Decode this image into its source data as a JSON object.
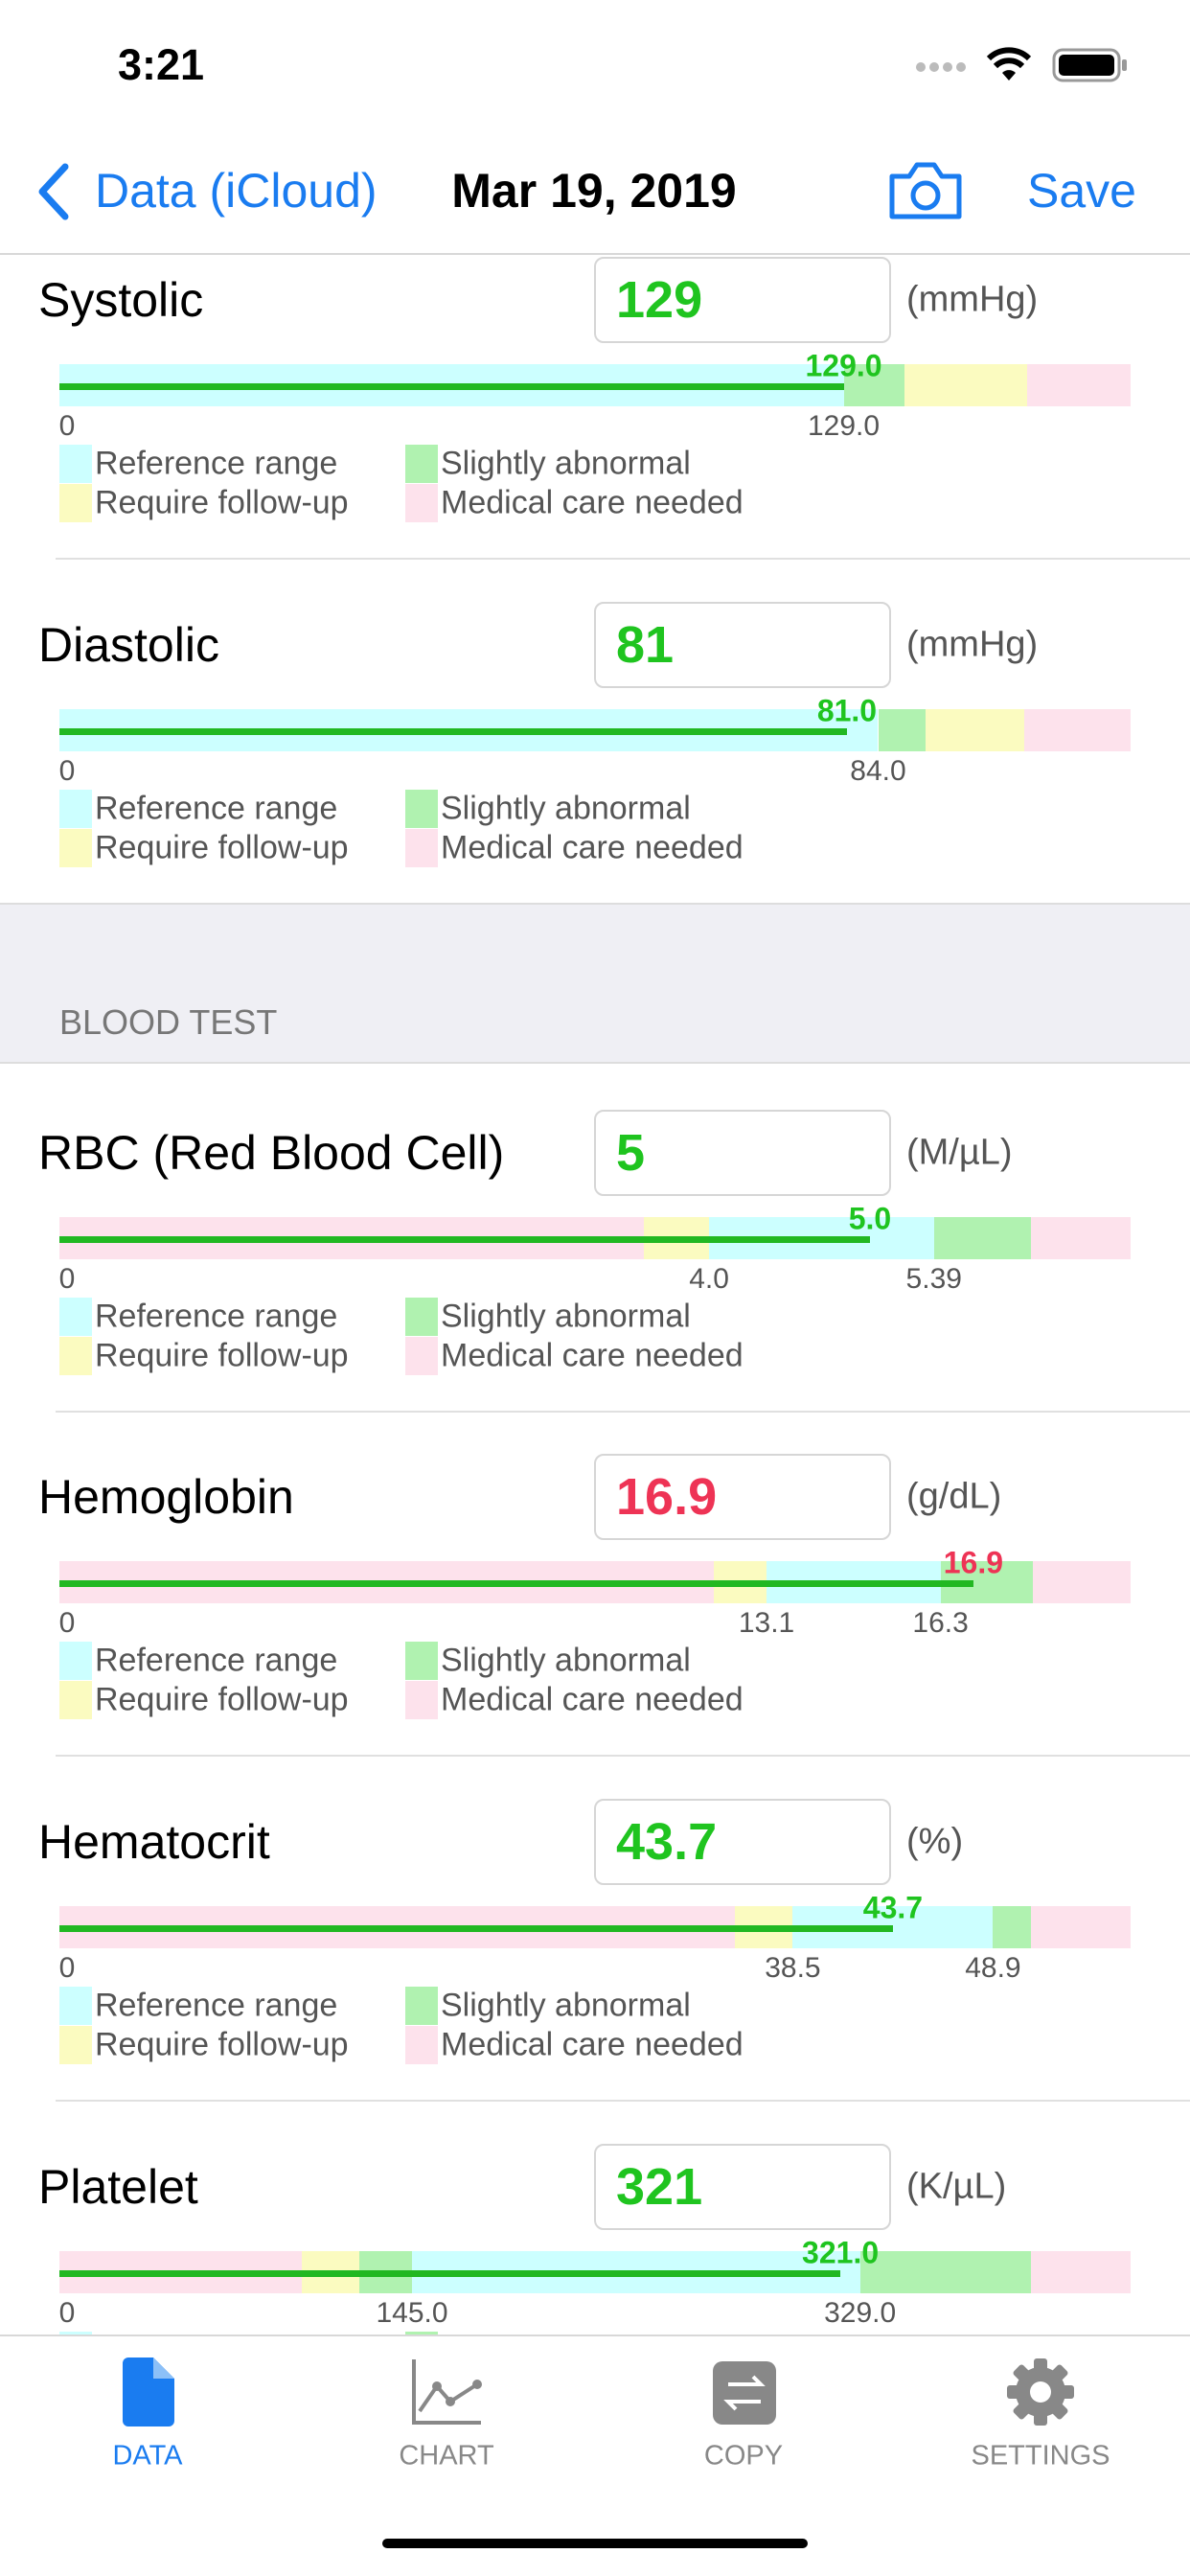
{
  "status": {
    "time": "3:21"
  },
  "nav": {
    "back": "Data (iCloud)",
    "title": "Mar 19, 2019",
    "save": "Save"
  },
  "legend": [
    "Reference range",
    "Slightly abnormal",
    "Require follow-up",
    "Medical care needed"
  ],
  "section_header": "BLOOD TEST",
  "rows": [
    {
      "label": "Systolic",
      "value": "129",
      "unit": "(mmHg)",
      "marker": "129.0",
      "ticks": [
        "0",
        "129.0"
      ],
      "color": "#1fc41f"
    },
    {
      "label": "Diastolic",
      "value": "81",
      "unit": "(mmHg)",
      "marker": "81.0",
      "ticks": [
        "0",
        "84.0"
      ],
      "color": "#1fc41f"
    },
    {
      "label": "RBC (Red Blood Cell)",
      "value": "5",
      "unit": "(M/µL)",
      "marker": "5.0",
      "ticks": [
        "0",
        "4.0",
        "5.39"
      ],
      "color": "#1fc41f"
    },
    {
      "label": "Hemoglobin",
      "value": "16.9",
      "unit": "(g/dL)",
      "marker": "16.9",
      "ticks": [
        "0",
        "13.1",
        "16.3"
      ],
      "color": "#ee3355"
    },
    {
      "label": "Hematocrit",
      "value": "43.7",
      "unit": "(%)",
      "marker": "43.7",
      "ticks": [
        "0",
        "38.5",
        "48.9"
      ],
      "color": "#1fc41f"
    },
    {
      "label": "Platelet",
      "value": "321",
      "unit": "(K/µL)",
      "marker": "321.0",
      "ticks": [
        "0",
        "145.0",
        "329.0"
      ],
      "color": "#1fc41f"
    }
  ],
  "tabs": [
    "DATA",
    "CHART",
    "COPY",
    "SETTINGS"
  ]
}
